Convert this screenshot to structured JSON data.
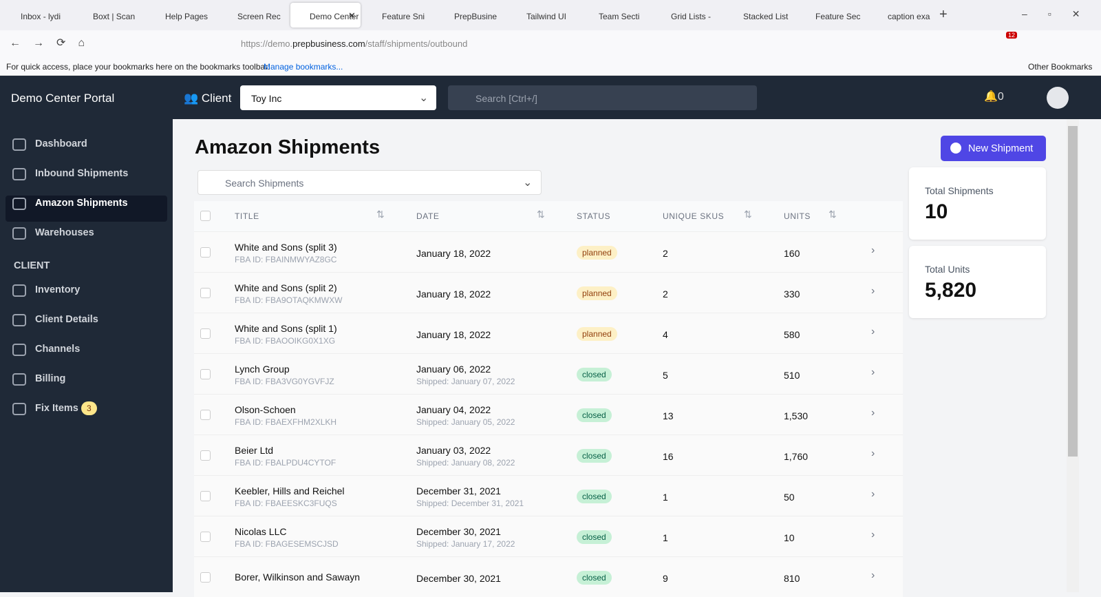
{
  "browser": {
    "tabs": [
      {
        "label": "Inbox - lydi"
      },
      {
        "label": "Boxt | Scan"
      },
      {
        "label": "Help Pages"
      },
      {
        "label": "Screen Rec"
      },
      {
        "label": "Demo Center",
        "active": true
      },
      {
        "label": "Feature Sni"
      },
      {
        "label": "PrepBusine"
      },
      {
        "label": "Tailwind UI"
      },
      {
        "label": "Team Secti"
      },
      {
        "label": "Grid Lists -"
      },
      {
        "label": "Stacked List"
      },
      {
        "label": "Feature Sec"
      },
      {
        "label": "caption exa"
      }
    ],
    "url": {
      "scheme": "https://demo.",
      "domain": "prepbusiness.com",
      "path": "/staff/shipments/outbound"
    },
    "extension_badge": "12",
    "bookmarks_hint": "For quick access, place your bookmarks here on the bookmarks toolbar.",
    "bookmarks_link": "Manage bookmarks...",
    "other_bookmarks": "Other Bookmarks"
  },
  "header": {
    "brand": "Demo Center Portal",
    "client_label": "Client",
    "client_select": "Toy Inc",
    "search_placeholder": "Search [Ctrl+/]",
    "notification_count": "0"
  },
  "sidebar": {
    "items": [
      {
        "label": "Dashboard"
      },
      {
        "label": "Inbound Shipments"
      },
      {
        "label": "Amazon Shipments",
        "active": true
      },
      {
        "label": "Warehouses"
      }
    ],
    "section": "CLIENT",
    "client_items": [
      {
        "label": "Inventory"
      },
      {
        "label": "Client Details"
      },
      {
        "label": "Channels"
      },
      {
        "label": "Billing"
      },
      {
        "label": "Fix Items",
        "badge": "3"
      }
    ]
  },
  "main": {
    "title": "Amazon Shipments",
    "new_button": "New Shipment",
    "search_placeholder": "Search Shipments",
    "columns": [
      "TITLE",
      "DATE",
      "STATUS",
      "UNIQUE SKUS",
      "UNITS"
    ],
    "rows": [
      {
        "title": "White and Sons (split 3)",
        "fba": "FBA ID: FBAINMWYAZ8GC",
        "date": "January 18, 2022",
        "status": "planned",
        "skus": "2",
        "units": "160"
      },
      {
        "title": "White and Sons (split 2)",
        "fba": "FBA ID: FBA9OTAQKMWXW",
        "date": "January 18, 2022",
        "status": "planned",
        "skus": "2",
        "units": "330"
      },
      {
        "title": "White and Sons (split 1)",
        "fba": "FBA ID: FBAOOIKG0X1XG",
        "date": "January 18, 2022",
        "status": "planned",
        "skus": "4",
        "units": "580"
      },
      {
        "title": "Lynch Group",
        "fba": "FBA ID: FBA3VG0YGVFJZ",
        "date": "January 06, 2022",
        "shipped": "Shipped: January 07, 2022",
        "status": "closed",
        "skus": "5",
        "units": "510"
      },
      {
        "title": "Olson-Schoen",
        "fba": "FBA ID: FBAEXFHM2XLKH",
        "date": "January 04, 2022",
        "shipped": "Shipped: January 05, 2022",
        "status": "closed",
        "skus": "13",
        "units": "1,530"
      },
      {
        "title": "Beier Ltd",
        "fba": "FBA ID: FBALPDU4CYTOF",
        "date": "January 03, 2022",
        "shipped": "Shipped: January 08, 2022",
        "status": "closed",
        "skus": "16",
        "units": "1,760"
      },
      {
        "title": "Keebler, Hills and Reichel",
        "fba": "FBA ID: FBAEESKC3FUQS",
        "date": "December 31, 2021",
        "shipped": "Shipped: December 31, 2021",
        "status": "closed",
        "skus": "1",
        "units": "50"
      },
      {
        "title": "Nicolas LLC",
        "fba": "FBA ID: FBAGESEMSCJSD",
        "date": "December 30, 2021",
        "shipped": "Shipped: January 17, 2022",
        "status": "closed",
        "skus": "1",
        "units": "10"
      },
      {
        "title": "Borer, Wilkinson and Sawayn",
        "date": "December 30, 2021",
        "status": "closed",
        "skus": "9",
        "units": "810"
      }
    ],
    "stats": [
      {
        "label": "Total Shipments",
        "value": "10"
      },
      {
        "label": "Total Units",
        "value": "5,820"
      }
    ]
  }
}
